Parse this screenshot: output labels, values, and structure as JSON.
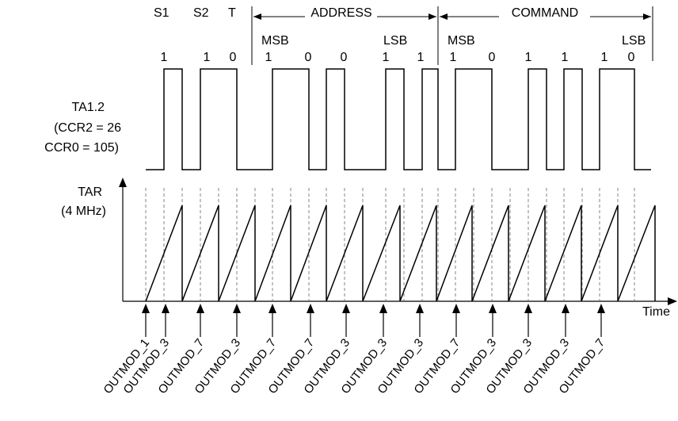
{
  "header": {
    "start_bits": [
      "S1",
      "S2",
      "T"
    ],
    "address_label": "ADDRESS",
    "command_label": "COMMAND",
    "address_msb": "MSB",
    "address_lsb": "LSB",
    "command_msb": "MSB",
    "command_lsb": "LSB"
  },
  "signal": {
    "name": "TA1.2",
    "ccr2": "(CCR2 = 26",
    "ccr0": "CCR0 = 105)",
    "bit_values": [
      "1",
      "1",
      "0",
      "1",
      "0",
      "0",
      "1",
      "1",
      "1",
      "0",
      "1",
      "1",
      "1",
      "0"
    ]
  },
  "timer": {
    "name": "TAR",
    "freq": "(4 MHz)",
    "time_axis_label": "Time"
  },
  "outmod_labels": [
    "OUTMOD_1",
    "OUTMOD_3",
    "OUTMOD_7",
    "OUTMOD_3",
    "OUTMOD_7",
    "OUTMOD_7",
    "OUTMOD_3",
    "OUTMOD_3",
    "OUTMOD_3",
    "OUTMOD_7",
    "OUTMOD_3",
    "OUTMOD_3",
    "OUTMOD_3",
    "OUTMOD_7"
  ]
}
